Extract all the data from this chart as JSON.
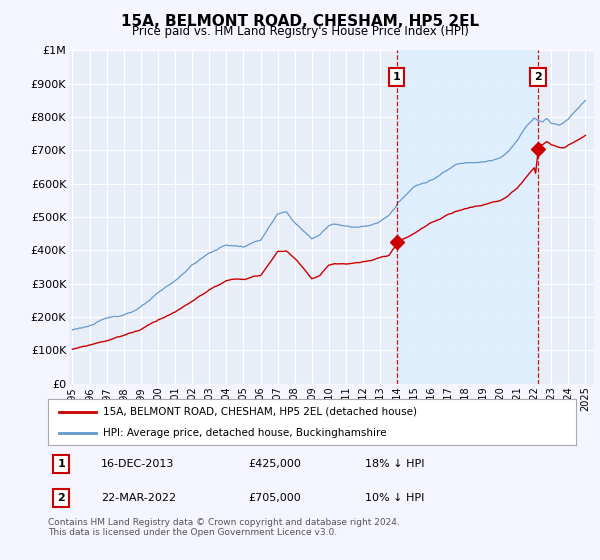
{
  "title": "15A, BELMONT ROAD, CHESHAM, HP5 2EL",
  "subtitle": "Price paid vs. HM Land Registry's House Price Index (HPI)",
  "ylabel_ticks": [
    "£0",
    "£100K",
    "£200K",
    "£300K",
    "£400K",
    "£500K",
    "£600K",
    "£700K",
    "£800K",
    "£900K",
    "£1M"
  ],
  "ytick_values": [
    0,
    100000,
    200000,
    300000,
    400000,
    500000,
    600000,
    700000,
    800000,
    900000,
    1000000
  ],
  "ylim": [
    0,
    1000000
  ],
  "xlim_start": 1994.8,
  "xlim_end": 2025.5,
  "hpi_color": "#6699cc",
  "hpi_fill_color": "#ddeeff",
  "price_color": "#cc0000",
  "background_color": "#f5f5ff",
  "plot_bg_color": "#e8eef8",
  "grid_color": "#ffffff",
  "legend_label_red": "15A, BELMONT ROAD, CHESHAM, HP5 2EL (detached house)",
  "legend_label_blue": "HPI: Average price, detached house, Buckinghamshire",
  "sale1_date": "16-DEC-2013",
  "sale1_x": 2013.96,
  "sale1_price": 425000,
  "sale2_date": "22-MAR-2022",
  "sale2_x": 2022.22,
  "sale2_price": 705000,
  "sale1_pct": "18% ↓ HPI",
  "sale2_pct": "10% ↓ HPI",
  "footer": "Contains HM Land Registry data © Crown copyright and database right 2024.\nThis data is licensed under the Open Government Licence v3.0.",
  "annotation_box_color": "#cc0000",
  "vline_color": "#cc0000",
  "xtick_years": [
    1995,
    1996,
    1997,
    1998,
    1999,
    2000,
    2001,
    2002,
    2003,
    2004,
    2005,
    2006,
    2007,
    2008,
    2009,
    2010,
    2011,
    2012,
    2013,
    2014,
    2015,
    2016,
    2017,
    2018,
    2019,
    2020,
    2021,
    2022,
    2023,
    2024,
    2025
  ]
}
